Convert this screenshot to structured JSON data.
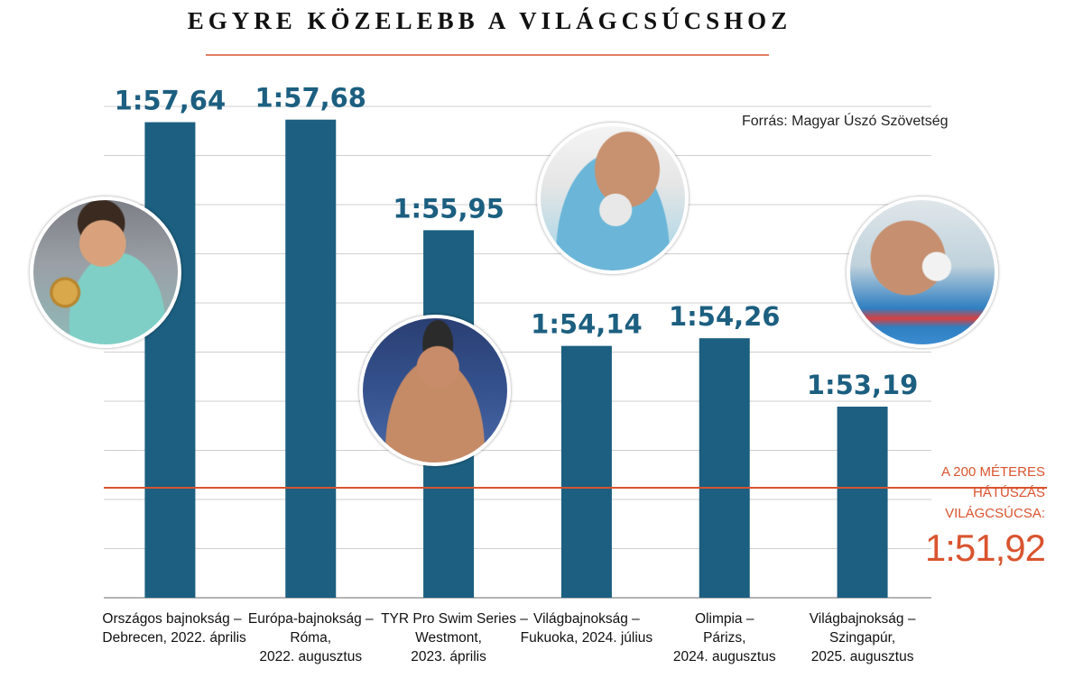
{
  "title": "EGYRE KÖZELEBB A VILÁGCSÚCSHOZ",
  "source": "Forrás: Magyar Úszó Szövetség",
  "world_record": {
    "label_lines": [
      "A 200 MÉTERES",
      "HÁTÚSZÁS",
      "VILÁGCSÚCSA:"
    ],
    "value_label": "1:51,92",
    "seconds": 111.92
  },
  "colors": {
    "bar": "#1c5f80",
    "accent": "#d9542f",
    "grid": "#cfcfcf",
    "value_text": "#1c5f80"
  },
  "chart_data": {
    "type": "bar",
    "title": "EGYRE KÖZELEBB A VILÁGCSÚCSHOZ",
    "categories": [
      [
        "Országos bajnokság –",
        "Debrecen, 2022. április"
      ],
      [
        "Európa-bajnokság –",
        "Róma,",
        "2022. augusztus"
      ],
      [
        "TYR Pro Swim Series –",
        "Westmont,",
        "2023. április"
      ],
      [
        "Világbajnokság –",
        "Fukuoka, 2024. július"
      ],
      [
        "Olimpia –",
        "Párizs,",
        "2024. augusztus"
      ],
      [
        "Világbajnokság –",
        "Szingapúr,",
        "2025. augusztus"
      ]
    ],
    "value_labels": [
      "1:57,64",
      "1:57,68",
      "1:55,95",
      "1:54,14",
      "1:54,26",
      "1:53,19"
    ],
    "values_seconds": [
      117.64,
      117.68,
      115.95,
      114.14,
      114.26,
      113.19
    ],
    "ylim_seconds": [
      110.2,
      118.0
    ],
    "grid": true,
    "reference_line": {
      "value_seconds": 111.92,
      "label": "1:51,92"
    }
  },
  "photos": [
    {
      "name": "swimmer-gold-medal-photo"
    },
    {
      "name": "swimmer-goggles-photo"
    },
    {
      "name": "swimmer-backstroke-start-photo"
    },
    {
      "name": "swimmer-start-block-photo"
    }
  ]
}
